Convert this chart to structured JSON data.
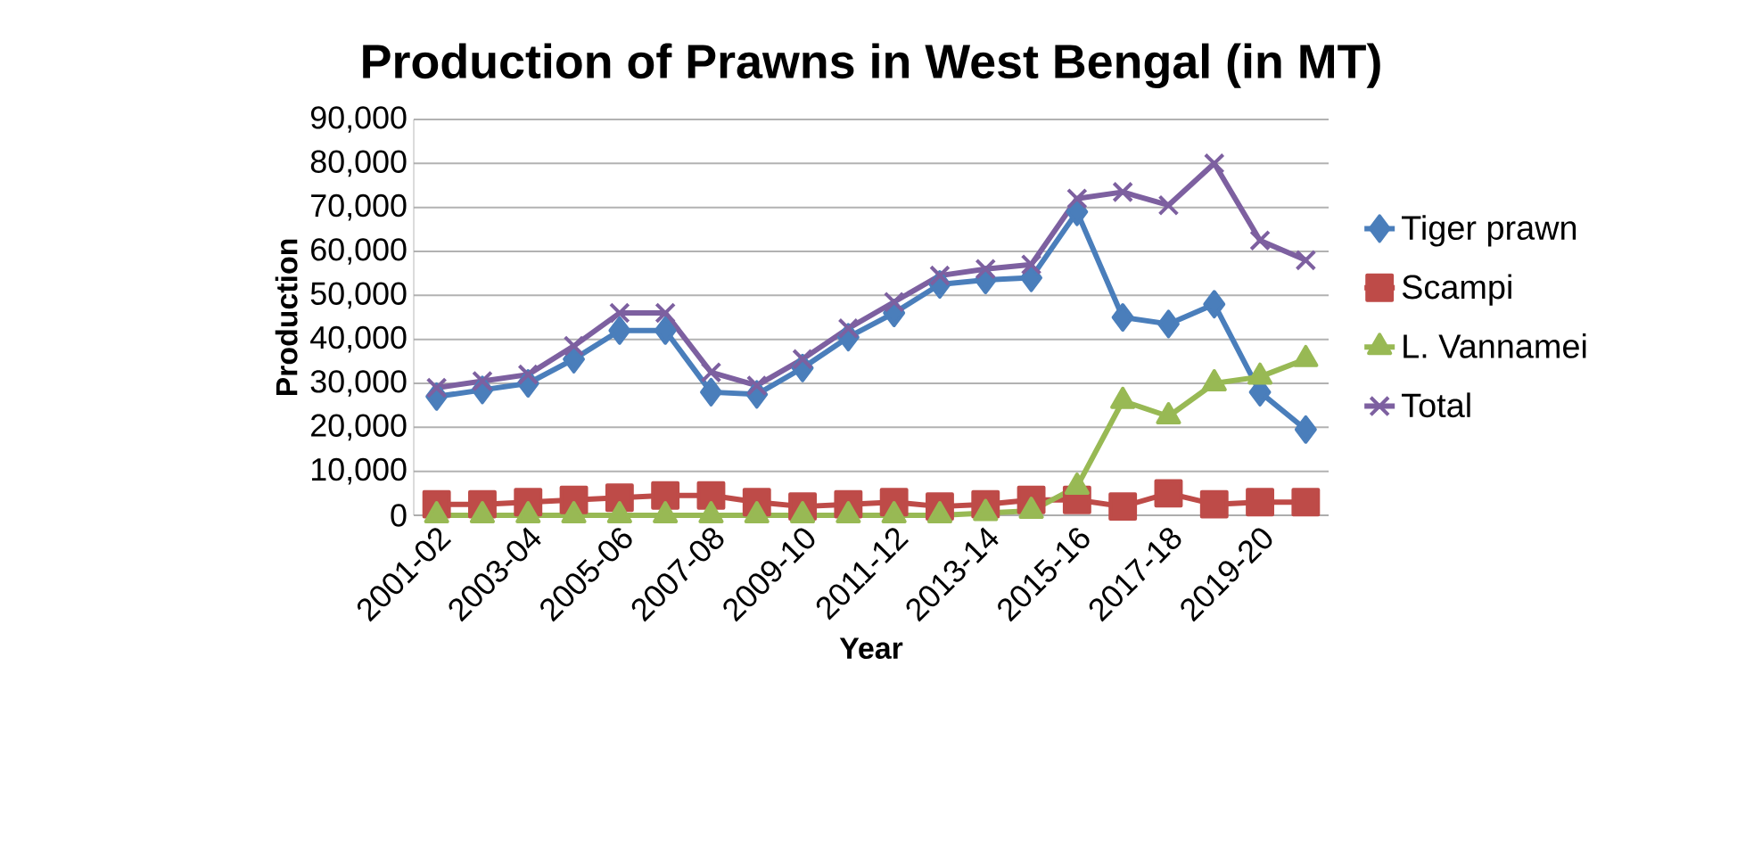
{
  "chart_data": {
    "type": "line",
    "title": "Production of Prawns in West Bengal (in MT)",
    "xlabel": "Year",
    "ylabel": "Production",
    "categories": [
      "2001-02",
      null,
      "2003-04",
      null,
      "2005-06",
      null,
      "2007-08",
      null,
      "2009-10",
      null,
      "2011-12",
      null,
      "2013-14",
      null,
      "2015-16",
      null,
      "2017-18",
      null,
      "2019-20",
      null
    ],
    "series": [
      {
        "name": "Tiger prawn",
        "color": "#4a7ebb",
        "marker": "diamond",
        "values": [
          27000,
          28500,
          30000,
          35500,
          42000,
          42000,
          28000,
          27500,
          33500,
          40500,
          46000,
          52500,
          53500,
          54000,
          69000,
          45000,
          43500,
          48000,
          28000,
          19500
        ]
      },
      {
        "name": "Scampi",
        "color": "#be4b48",
        "marker": "square",
        "values": [
          2500,
          2500,
          3000,
          3500,
          4000,
          4500,
          4500,
          3000,
          2000,
          2500,
          3000,
          2000,
          2500,
          3500,
          3500,
          2000,
          5000,
          2500,
          3000,
          3000
        ]
      },
      {
        "name": "L. Vannamei",
        "color": "#98b954",
        "marker": "triangle",
        "values": [
          0,
          0,
          0,
          0,
          0,
          0,
          0,
          0,
          0,
          0,
          0,
          0,
          500,
          1000,
          6500,
          26000,
          22500,
          30000,
          31500,
          35500
        ]
      },
      {
        "name": "Total",
        "color": "#7d60a0",
        "marker": "cross",
        "values": [
          29000,
          30500,
          32000,
          38500,
          46000,
          46000,
          32500,
          29500,
          35500,
          42500,
          48500,
          54500,
          56000,
          57000,
          72000,
          73500,
          70500,
          80000,
          62500,
          58000
        ]
      }
    ],
    "ylim": [
      0,
      90000
    ],
    "yticks": [
      {
        "value": 0,
        "label": "0"
      },
      {
        "value": 10000,
        "label": "10,000"
      },
      {
        "value": 20000,
        "label": "20,000"
      },
      {
        "value": 30000,
        "label": "30,000"
      },
      {
        "value": 40000,
        "label": "40,000"
      },
      {
        "value": 50000,
        "label": "50,000"
      },
      {
        "value": 60000,
        "label": "60,000"
      },
      {
        "value": 70000,
        "label": "70,000"
      },
      {
        "value": 80000,
        "label": "80,000"
      },
      {
        "value": 90000,
        "label": "90,000"
      }
    ],
    "grid": "y",
    "legend": "right",
    "line_style": "solid"
  }
}
